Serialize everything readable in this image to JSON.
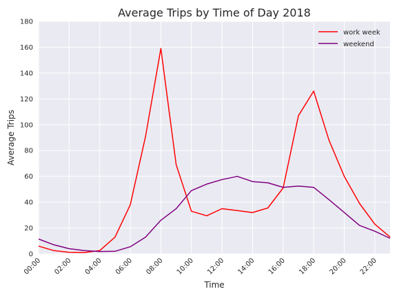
{
  "chart_data": {
    "type": "line",
    "title": "Average Trips by Time of Day 2018",
    "xlabel": "Time",
    "ylabel": "Average Trips",
    "x_tick_labels": [
      "00:00",
      "02:00",
      "04:00",
      "06:00",
      "08:00",
      "10:00",
      "12:00",
      "14:00",
      "16:00",
      "18:00",
      "20:00",
      "22:00"
    ],
    "x": [
      0,
      1,
      2,
      3,
      4,
      5,
      6,
      7,
      8,
      9,
      10,
      11,
      12,
      13,
      14,
      15,
      16,
      17,
      18,
      19,
      20,
      21,
      22,
      23
    ],
    "xlim": [
      0,
      23
    ],
    "ylim": [
      0,
      180
    ],
    "y_ticks": [
      0,
      20,
      40,
      60,
      80,
      100,
      120,
      140,
      160,
      180
    ],
    "grid": true,
    "legend_position": "top-right",
    "series": [
      {
        "name": "work week",
        "color": "#ff0000",
        "values": [
          6,
          2.5,
          1.2,
          1,
          2.5,
          13,
          38,
          91,
          159,
          69,
          33,
          29.5,
          35,
          33.5,
          32,
          35.5,
          51,
          107,
          126,
          88,
          60,
          39,
          23,
          13
        ]
      },
      {
        "name": "weekend",
        "color": "#800080",
        "values": [
          11.5,
          7,
          4,
          2.5,
          1.8,
          2,
          5.5,
          13,
          26,
          35,
          49,
          54,
          57.5,
          60,
          56,
          55,
          51.5,
          52.5,
          51.5,
          42,
          32,
          22,
          17.5,
          12
        ]
      }
    ]
  }
}
